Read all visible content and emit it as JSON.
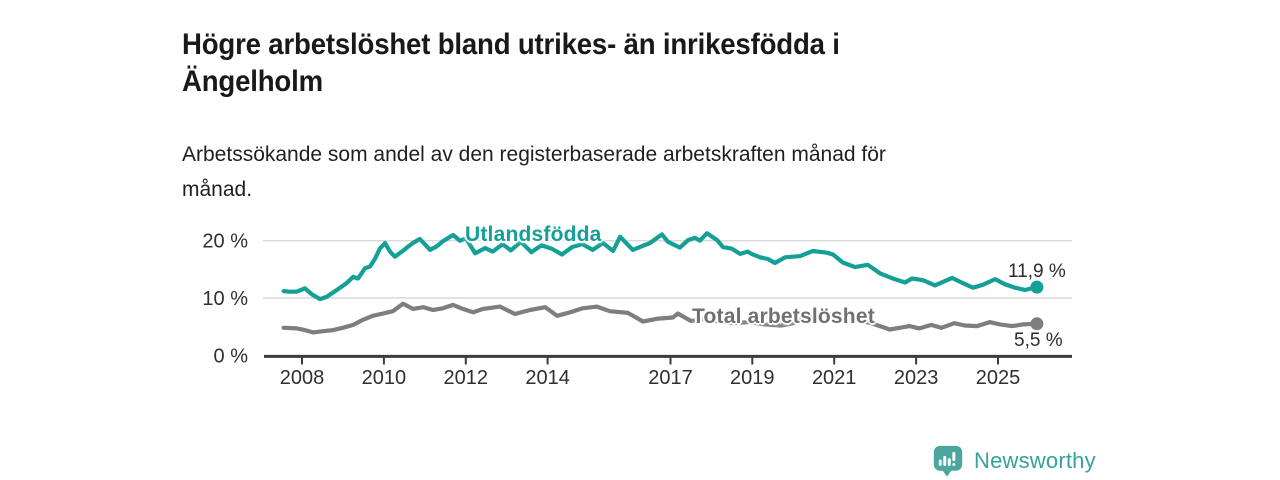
{
  "chart_data": {
    "type": "line",
    "title": "Högre arbetslöshet bland utrikes- än inrikesfödda i Ängelholm",
    "title_lines": [
      "Högre arbetslöshet bland utrikes- än inrikesfödda i",
      "Ängelholm"
    ],
    "subtitle": "Arbetssökande som andel av den registerbaserade arbetskraften månad för månad.",
    "subtitle_lines": [
      "Arbetssökande som andel av den registerbaserade arbetskraften månad för",
      "månad."
    ],
    "x_axis": {
      "unit": "year",
      "tick_years": [
        2008,
        2010,
        2012,
        2014,
        2017,
        2019,
        2021,
        2023,
        2025
      ],
      "tick_labels": [
        "2008",
        "2010",
        "2012",
        "2014",
        "2017",
        "2019",
        "2021",
        "2023",
        "2025"
      ],
      "range": [
        2007.0,
        2026.8
      ]
    },
    "y_axis": {
      "unit": "percent",
      "tick_values": [
        0,
        10,
        20
      ],
      "tick_labels": [
        "0 %",
        "10 %",
        "20 %"
      ],
      "range": [
        0,
        22.2
      ]
    },
    "grid": "horizontal",
    "legend": "inline-series-labels",
    "series": [
      {
        "id": "utlandsfodda",
        "name": "Utlandsfödda",
        "color": "#14A096",
        "end_label": "11,9 %",
        "end_value": 11.9,
        "points": [
          [
            2007.55,
            11.2
          ],
          [
            2007.7,
            11.1
          ],
          [
            2007.87,
            11.1
          ],
          [
            2008.07,
            11.7
          ],
          [
            2008.25,
            10.6
          ],
          [
            2008.44,
            9.8
          ],
          [
            2008.6,
            10.2
          ],
          [
            2008.85,
            11.4
          ],
          [
            2009.09,
            12.6
          ],
          [
            2009.25,
            13.7
          ],
          [
            2009.37,
            13.4
          ],
          [
            2009.54,
            15.2
          ],
          [
            2009.66,
            15.5
          ],
          [
            2009.78,
            16.8
          ],
          [
            2009.9,
            18.6
          ],
          [
            2010.03,
            19.6
          ],
          [
            2010.15,
            18.1
          ],
          [
            2010.27,
            17.2
          ],
          [
            2010.44,
            18.1
          ],
          [
            2010.6,
            19.0
          ],
          [
            2010.71,
            19.6
          ],
          [
            2010.88,
            20.3
          ],
          [
            2011.13,
            18.4
          ],
          [
            2011.29,
            19.0
          ],
          [
            2011.44,
            19.9
          ],
          [
            2011.69,
            21.0
          ],
          [
            2011.86,
            20.0
          ],
          [
            2012.0,
            20.4
          ],
          [
            2012.23,
            17.8
          ],
          [
            2012.47,
            18.7
          ],
          [
            2012.66,
            18.1
          ],
          [
            2012.9,
            19.4
          ],
          [
            2013.1,
            18.3
          ],
          [
            2013.35,
            19.8
          ],
          [
            2013.6,
            18.0
          ],
          [
            2013.85,
            19.2
          ],
          [
            2014.1,
            18.6
          ],
          [
            2014.35,
            17.6
          ],
          [
            2014.6,
            18.9
          ],
          [
            2014.85,
            19.4
          ],
          [
            2015.1,
            18.4
          ],
          [
            2015.35,
            19.6
          ],
          [
            2015.6,
            18.2
          ],
          [
            2015.77,
            20.7
          ],
          [
            2016.08,
            18.4
          ],
          [
            2016.5,
            19.6
          ],
          [
            2016.79,
            21.1
          ],
          [
            2016.94,
            19.8
          ],
          [
            2017.23,
            18.8
          ],
          [
            2017.43,
            20.1
          ],
          [
            2017.6,
            20.5
          ],
          [
            2017.72,
            20.0
          ],
          [
            2017.89,
            21.3
          ],
          [
            2018.14,
            20.1
          ],
          [
            2018.28,
            18.9
          ],
          [
            2018.5,
            18.6
          ],
          [
            2018.7,
            17.7
          ],
          [
            2018.89,
            18.1
          ],
          [
            2018.98,
            17.7
          ],
          [
            2019.19,
            17.1
          ],
          [
            2019.38,
            16.8
          ],
          [
            2019.55,
            16.1
          ],
          [
            2019.8,
            17.1
          ],
          [
            2019.99,
            17.2
          ],
          [
            2020.16,
            17.3
          ],
          [
            2020.48,
            18.2
          ],
          [
            2020.82,
            17.9
          ],
          [
            2020.97,
            17.6
          ],
          [
            2021.21,
            16.2
          ],
          [
            2021.51,
            15.4
          ],
          [
            2021.82,
            15.8
          ],
          [
            2022.12,
            14.3
          ],
          [
            2022.43,
            13.4
          ],
          [
            2022.73,
            12.7
          ],
          [
            2022.9,
            13.4
          ],
          [
            2023.17,
            13.1
          ],
          [
            2023.46,
            12.2
          ],
          [
            2023.88,
            13.5
          ],
          [
            2024.14,
            12.6
          ],
          [
            2024.39,
            11.8
          ],
          [
            2024.63,
            12.3
          ],
          [
            2024.93,
            13.3
          ],
          [
            2025.17,
            12.4
          ],
          [
            2025.42,
            11.8
          ],
          [
            2025.66,
            11.4
          ],
          [
            2025.95,
            11.9
          ]
        ]
      },
      {
        "id": "total-arbetsloshet",
        "name": "Total arbetslöshet",
        "color": "#7E7E7E",
        "end_label": "5,5 %",
        "end_value": 5.5,
        "points": [
          [
            2007.55,
            4.8
          ],
          [
            2007.87,
            4.7
          ],
          [
            2008.07,
            4.4
          ],
          [
            2008.27,
            4.0
          ],
          [
            2008.51,
            4.2
          ],
          [
            2008.76,
            4.4
          ],
          [
            2009.0,
            4.8
          ],
          [
            2009.25,
            5.3
          ],
          [
            2009.49,
            6.2
          ],
          [
            2009.73,
            6.9
          ],
          [
            2009.98,
            7.3
          ],
          [
            2010.22,
            7.7
          ],
          [
            2010.47,
            9.0
          ],
          [
            2010.71,
            8.1
          ],
          [
            2010.96,
            8.4
          ],
          [
            2011.2,
            7.9
          ],
          [
            2011.44,
            8.2
          ],
          [
            2011.69,
            8.8
          ],
          [
            2011.93,
            8.1
          ],
          [
            2012.18,
            7.5
          ],
          [
            2012.42,
            8.1
          ],
          [
            2012.84,
            8.5
          ],
          [
            2013.2,
            7.2
          ],
          [
            2013.57,
            7.9
          ],
          [
            2013.94,
            8.4
          ],
          [
            2014.23,
            6.9
          ],
          [
            2014.55,
            7.5
          ],
          [
            2014.86,
            8.2
          ],
          [
            2015.2,
            8.5
          ],
          [
            2015.52,
            7.7
          ],
          [
            2015.96,
            7.4
          ],
          [
            2016.33,
            5.9
          ],
          [
            2016.7,
            6.4
          ],
          [
            2017.06,
            6.6
          ],
          [
            2017.18,
            7.3
          ],
          [
            2017.5,
            6.0
          ],
          [
            2017.8,
            6.3
          ],
          [
            2018.1,
            6.0
          ],
          [
            2018.5,
            5.6
          ],
          [
            2018.9,
            5.8
          ],
          [
            2019.3,
            5.4
          ],
          [
            2019.7,
            5.2
          ],
          [
            2020.0,
            5.6
          ],
          [
            2020.4,
            7.0
          ],
          [
            2020.8,
            7.3
          ],
          [
            2021.1,
            6.8
          ],
          [
            2021.5,
            6.2
          ],
          [
            2021.9,
            5.6
          ],
          [
            2022.2,
            4.9
          ],
          [
            2022.35,
            4.5
          ],
          [
            2022.6,
            4.8
          ],
          [
            2022.84,
            5.1
          ],
          [
            2023.08,
            4.7
          ],
          [
            2023.37,
            5.3
          ],
          [
            2023.62,
            4.8
          ],
          [
            2023.93,
            5.6
          ],
          [
            2024.19,
            5.2
          ],
          [
            2024.49,
            5.1
          ],
          [
            2024.8,
            5.8
          ],
          [
            2025.05,
            5.4
          ],
          [
            2025.34,
            5.1
          ],
          [
            2025.61,
            5.4
          ],
          [
            2025.95,
            5.5
          ]
        ]
      }
    ],
    "style": {
      "background": "#FFFFFF",
      "grid_color": "#D9D9D9",
      "axis_color": "#3C3C3C",
      "tick_label_color": "#2F2F2F",
      "annotation_color": "#2B2B2B"
    }
  },
  "footer": {
    "brand": "Newsworthy",
    "logo_icon": "bar-chart-speech-bubble-icon",
    "brand_color": "#37A29B",
    "logo_bubble_color": "#4CA6A0"
  }
}
